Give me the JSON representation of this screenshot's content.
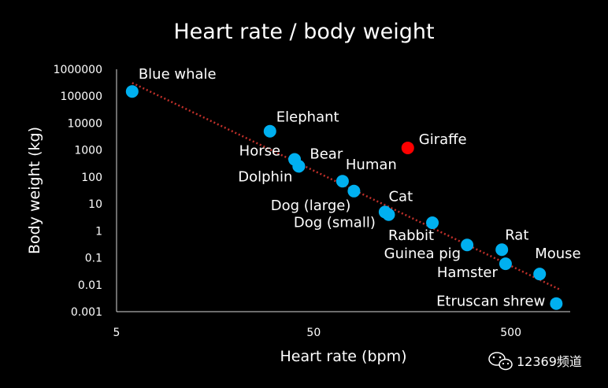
{
  "chart_data": {
    "type": "scatter",
    "title": "Heart rate / body weight",
    "xlabel": "Heart rate (bpm)",
    "ylabel": "Body weight (kg)",
    "x_scale": "log",
    "y_scale": "log",
    "xlim": [
      5,
      1000
    ],
    "ylim": [
      0.001,
      1000000
    ],
    "x_ticks": [
      "5",
      "50",
      "500"
    ],
    "y_ticks": [
      "1000000",
      "100000",
      "10000",
      "1000",
      "100",
      "10",
      "1",
      "0.1",
      "0.01",
      "0.001"
    ],
    "grid": false,
    "trendline": {
      "type": "power",
      "style": "dotted",
      "color": "#c0302a"
    },
    "colors": {
      "point": "#00b0f0",
      "highlight": "#ff0000",
      "background": "#000000"
    },
    "points": [
      {
        "label": "Blue whale",
        "x": 6,
        "y": 150000,
        "highlight": false
      },
      {
        "label": "Elephant",
        "x": 30,
        "y": 5000,
        "highlight": false
      },
      {
        "label": "Horse",
        "x": 40,
        "y": 450,
        "highlight": false
      },
      {
        "label": "Bear",
        "x": 42,
        "y": 250,
        "highlight": false
      },
      {
        "label": "Dolphin",
        "x": 42,
        "y": 250,
        "highlight": false
      },
      {
        "label": "Giraffe",
        "x": 150,
        "y": 1200,
        "highlight": true
      },
      {
        "label": "Human",
        "x": 70,
        "y": 70,
        "highlight": false
      },
      {
        "label": "Dog (large)",
        "x": 80,
        "y": 30,
        "highlight": false
      },
      {
        "label": "Cat",
        "x": 120,
        "y": 4,
        "highlight": false
      },
      {
        "label": "Dog (small)",
        "x": 115,
        "y": 5,
        "highlight": false
      },
      {
        "label": "Rabbit",
        "x": 200,
        "y": 2,
        "highlight": false
      },
      {
        "label": "Guinea pig",
        "x": 300,
        "y": 0.3,
        "highlight": false
      },
      {
        "label": "Rat",
        "x": 450,
        "y": 0.2,
        "highlight": false
      },
      {
        "label": "Hamster",
        "x": 470,
        "y": 0.06,
        "highlight": false
      },
      {
        "label": "Mouse",
        "x": 700,
        "y": 0.025,
        "highlight": false
      },
      {
        "label": "Etruscan shrew",
        "x": 850,
        "y": 0.002,
        "highlight": false
      }
    ]
  },
  "watermark": {
    "text": "12369频道",
    "icon": "wechat-icon"
  }
}
